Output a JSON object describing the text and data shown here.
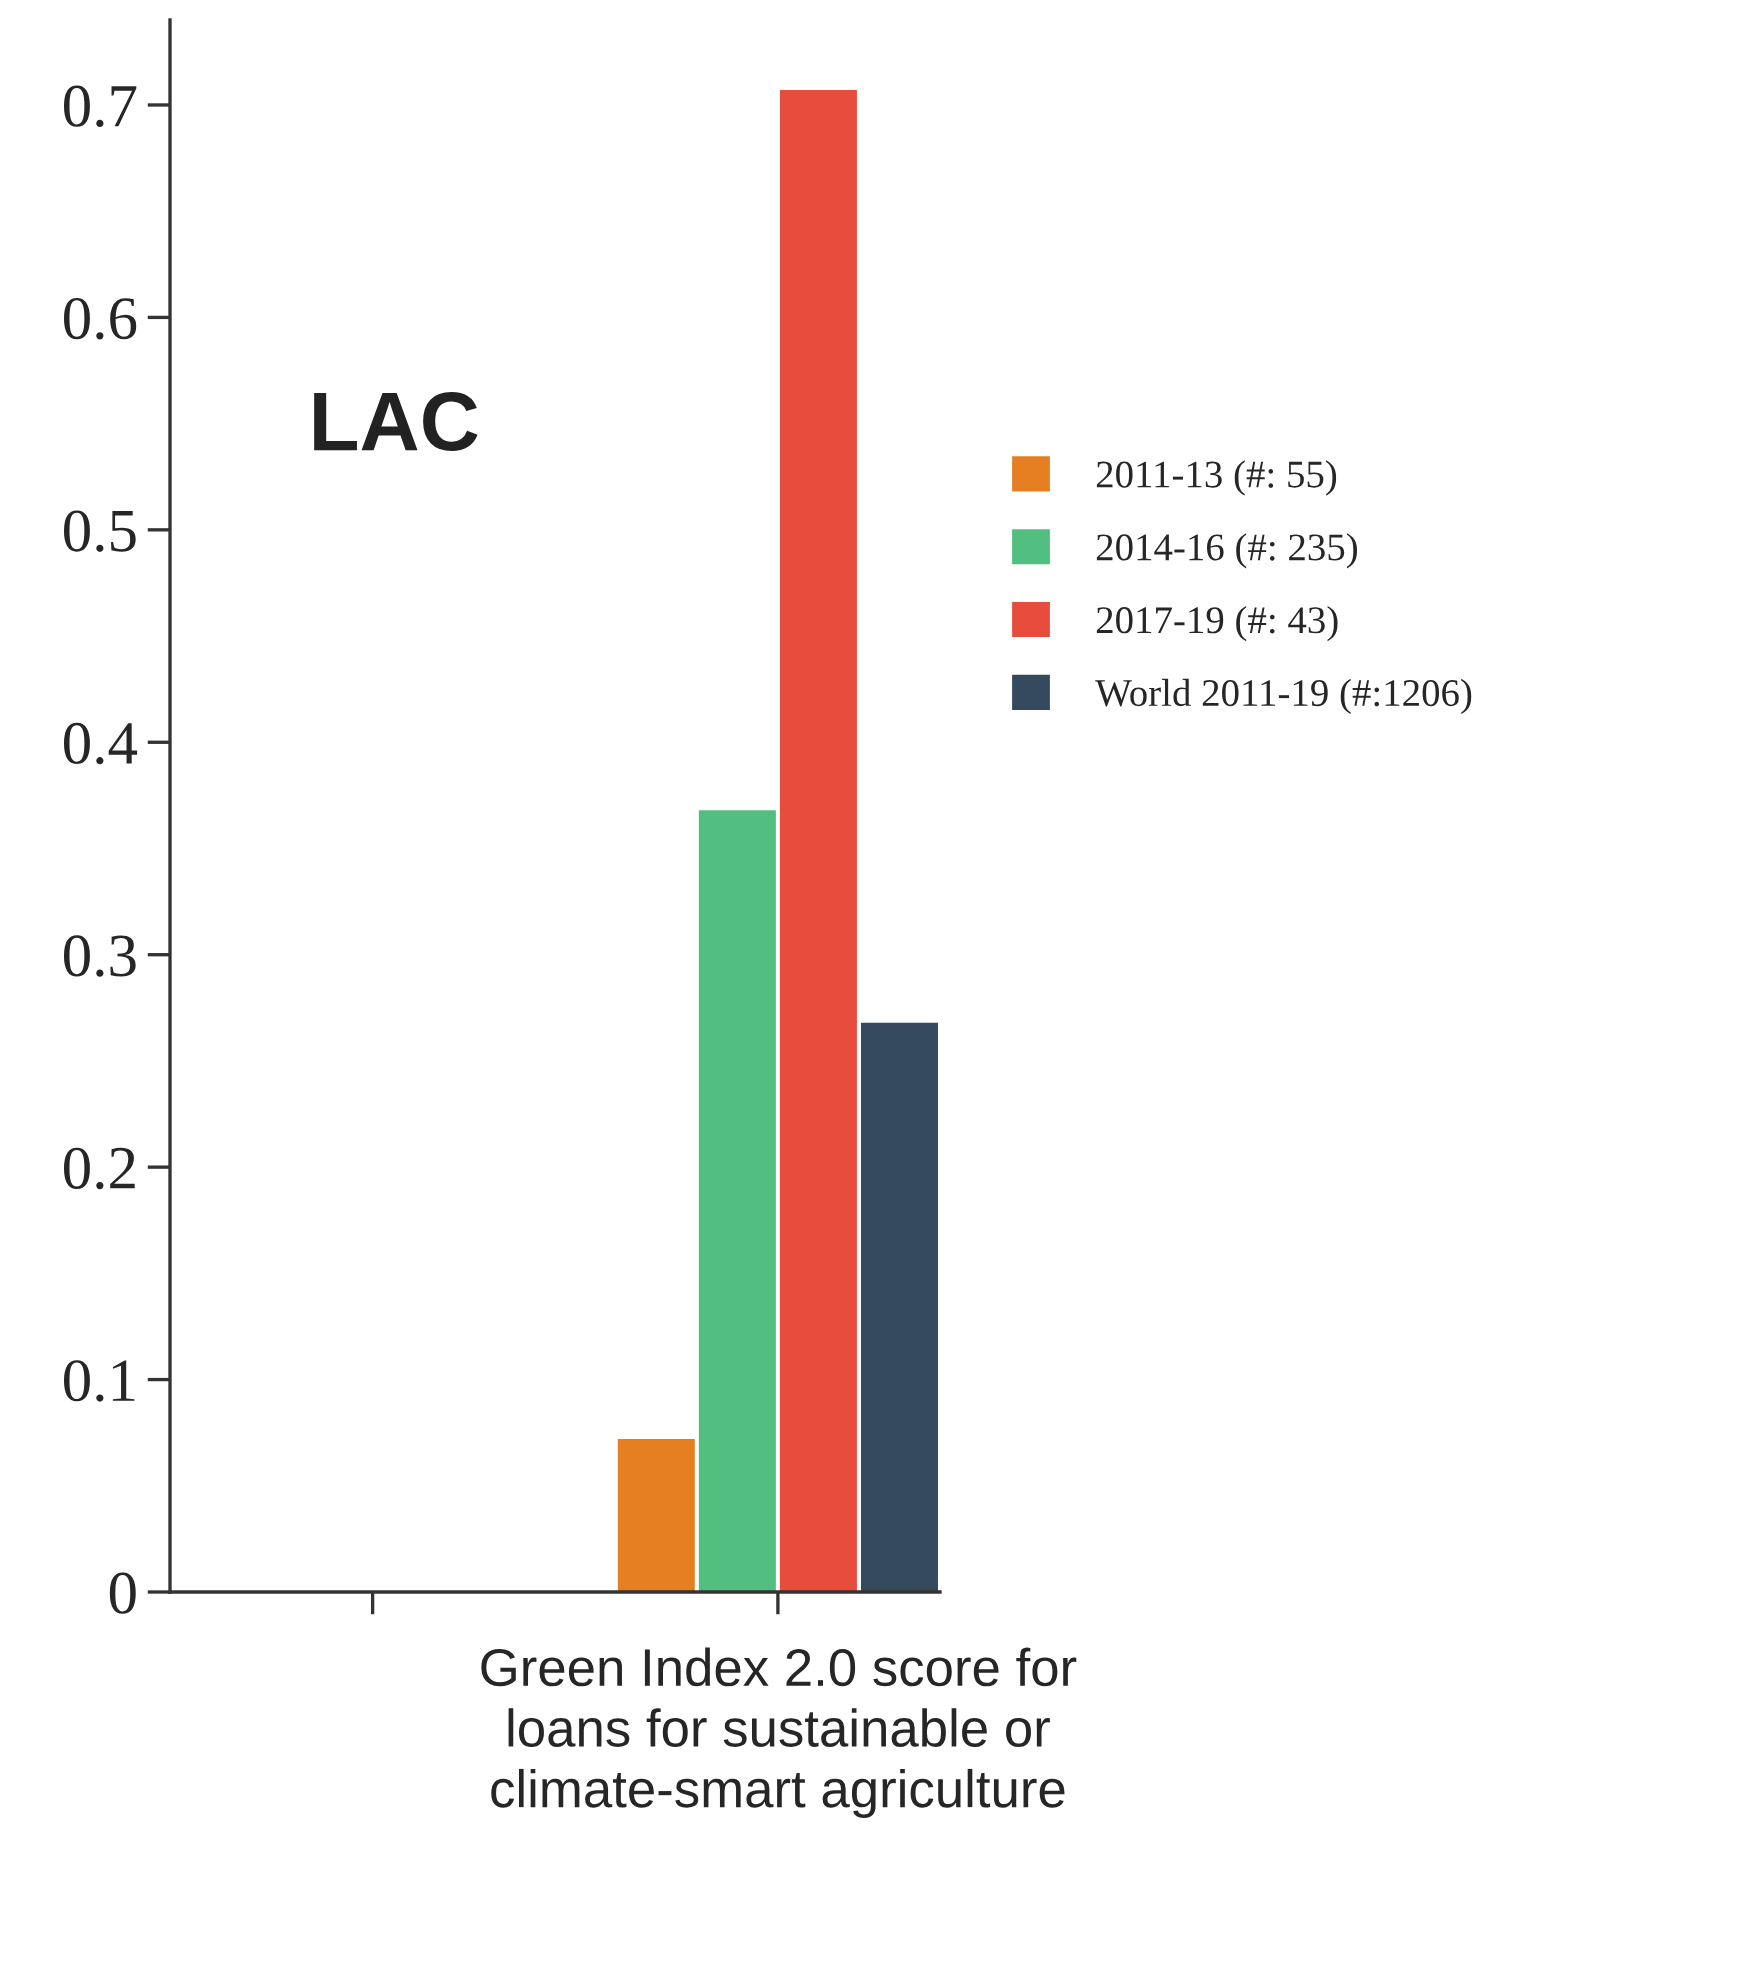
{
  "chart_data": {
    "type": "bar",
    "categories": [
      null,
      "Green Index 2.0 score for\nloans for sustainable or\nclimate-smart agriculture"
    ],
    "series": [
      {
        "name": "2011-13 (#: 55)",
        "color": "#e67e22",
        "values": [
          null,
          0.072
        ]
      },
      {
        "name": "2014-16 (#: 235)",
        "color": "#52be80",
        "values": [
          null,
          0.368
        ]
      },
      {
        "name": "2017-19 (#: 43)",
        "color": "#e74c3c",
        "values": [
          null,
          0.707
        ]
      },
      {
        "name": "World 2011-19 (#:1206)",
        "color": "#34495e",
        "values": [
          null,
          0.268
        ]
      }
    ],
    "ylim": [
      0,
      0.74
    ],
    "yticks": [
      0,
      0.1,
      0.2,
      0.3,
      0.4,
      0.5,
      0.6,
      0.7
    ],
    "annotations": [
      "LAC"
    ],
    "legend": "right",
    "grid": false
  }
}
